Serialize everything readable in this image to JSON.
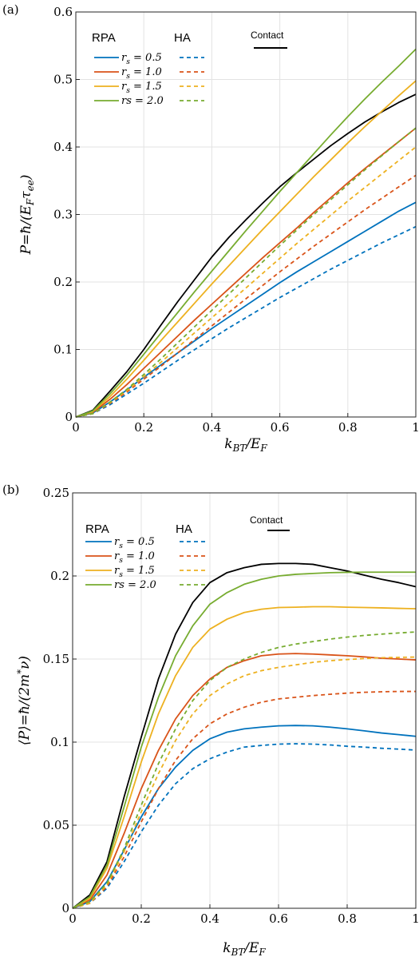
{
  "chart_data": [
    {
      "panel_label": "(a)",
      "type": "line",
      "xlabel": "k_B T / E_F",
      "ylabel": "P = ħ/(E_F τ_ee)",
      "xlim": [
        0,
        1
      ],
      "ylim": [
        0,
        0.6
      ],
      "xticks": [
        "0",
        "0.2",
        "0.4",
        "0.6",
        "0.8",
        "1"
      ],
      "yticks": [
        "0",
        "0.1",
        "0.2",
        "0.3",
        "0.4",
        "0.5",
        "0.6"
      ],
      "grid": true,
      "legend_headers": {
        "rpa": "RPA",
        "ha": "HA",
        "contact": "Contact"
      },
      "series": [
        {
          "name": "Contact",
          "method": "Contact",
          "color": "#000000",
          "style": "solid",
          "x": [
            0,
            0.05,
            0.1,
            0.15,
            0.2,
            0.25,
            0.3,
            0.35,
            0.4,
            0.45,
            0.5,
            0.55,
            0.6,
            0.65,
            0.7,
            0.75,
            0.8,
            0.85,
            0.9,
            0.95,
            1.0
          ],
          "y": [
            0,
            0.01,
            0.038,
            0.067,
            0.1,
            0.136,
            0.171,
            0.204,
            0.237,
            0.266,
            0.292,
            0.317,
            0.341,
            0.362,
            0.382,
            0.402,
            0.42,
            0.437,
            0.452,
            0.466,
            0.478
          ]
        },
        {
          "name": "r_s = 0.5",
          "method": "RPA",
          "color": "#0072BD",
          "style": "solid",
          "x": [
            0,
            0.05,
            0.1,
            0.15,
            0.2,
            0.25,
            0.3,
            0.35,
            0.4,
            0.45,
            0.5,
            0.55,
            0.6,
            0.65,
            0.7,
            0.75,
            0.8,
            0.85,
            0.9,
            0.95,
            1.0
          ],
          "y": [
            0,
            0.006,
            0.022,
            0.04,
            0.059,
            0.077,
            0.095,
            0.113,
            0.131,
            0.148,
            0.165,
            0.182,
            0.199,
            0.215,
            0.23,
            0.245,
            0.26,
            0.275,
            0.29,
            0.305,
            0.318
          ]
        },
        {
          "name": "r_s = 1.0",
          "method": "RPA",
          "color": "#D95319",
          "style": "solid",
          "x": [
            0,
            0.05,
            0.1,
            0.15,
            0.2,
            0.25,
            0.3,
            0.35,
            0.4,
            0.45,
            0.5,
            0.55,
            0.6,
            0.65,
            0.7,
            0.75,
            0.8,
            0.85,
            0.9,
            0.95,
            1.0
          ],
          "y": [
            0,
            0.007,
            0.026,
            0.048,
            0.072,
            0.096,
            0.12,
            0.144,
            0.167,
            0.19,
            0.213,
            0.236,
            0.258,
            0.28,
            0.303,
            0.325,
            0.347,
            0.368,
            0.388,
            0.408,
            0.428
          ]
        },
        {
          "name": "r_s = 1.5",
          "method": "RPA",
          "color": "#EDB120",
          "style": "solid",
          "x": [
            0,
            0.05,
            0.1,
            0.15,
            0.2,
            0.25,
            0.3,
            0.35,
            0.4,
            0.45,
            0.5,
            0.55,
            0.6,
            0.65,
            0.7,
            0.75,
            0.8,
            0.85,
            0.9,
            0.95,
            1.0
          ],
          "y": [
            0,
            0.008,
            0.03,
            0.056,
            0.084,
            0.113,
            0.141,
            0.169,
            0.197,
            0.224,
            0.251,
            0.278,
            0.304,
            0.33,
            0.356,
            0.381,
            0.406,
            0.43,
            0.453,
            0.476,
            0.498
          ]
        },
        {
          "name": "rs = 2.0",
          "method": "RPA",
          "color": "#77AC30",
          "style": "solid",
          "x": [
            0,
            0.05,
            0.1,
            0.15,
            0.2,
            0.25,
            0.3,
            0.35,
            0.4,
            0.45,
            0.5,
            0.55,
            0.6,
            0.65,
            0.7,
            0.75,
            0.8,
            0.85,
            0.9,
            0.95,
            1.0
          ],
          "y": [
            0,
            0.009,
            0.034,
            0.062,
            0.093,
            0.124,
            0.155,
            0.186,
            0.216,
            0.246,
            0.276,
            0.305,
            0.334,
            0.362,
            0.39,
            0.418,
            0.445,
            0.471,
            0.496,
            0.52,
            0.545
          ]
        },
        {
          "name": "r_s = 0.5",
          "method": "HA",
          "color": "#0072BD",
          "style": "dashed",
          "x": [
            0,
            0.05,
            0.1,
            0.15,
            0.2,
            0.25,
            0.3,
            0.35,
            0.4,
            0.45,
            0.5,
            0.55,
            0.6,
            0.65,
            0.7,
            0.75,
            0.8,
            0.85,
            0.9,
            0.95,
            1.0
          ],
          "y": [
            0,
            0.005,
            0.018,
            0.034,
            0.05,
            0.067,
            0.084,
            0.1,
            0.116,
            0.132,
            0.147,
            0.162,
            0.177,
            0.191,
            0.205,
            0.219,
            0.232,
            0.245,
            0.258,
            0.27,
            0.282
          ]
        },
        {
          "name": "r_s = 1.0",
          "method": "HA",
          "color": "#D95319",
          "style": "dashed",
          "x": [
            0,
            0.05,
            0.1,
            0.15,
            0.2,
            0.25,
            0.3,
            0.35,
            0.4,
            0.45,
            0.5,
            0.55,
            0.6,
            0.65,
            0.7,
            0.75,
            0.8,
            0.85,
            0.9,
            0.95,
            1.0
          ],
          "y": [
            0,
            0.005,
            0.02,
            0.037,
            0.056,
            0.075,
            0.095,
            0.115,
            0.135,
            0.155,
            0.175,
            0.195,
            0.215,
            0.234,
            0.253,
            0.271,
            0.289,
            0.307,
            0.324,
            0.341,
            0.358
          ]
        },
        {
          "name": "r_s = 1.5",
          "method": "HA",
          "color": "#EDB120",
          "style": "dashed",
          "x": [
            0,
            0.05,
            0.1,
            0.15,
            0.2,
            0.25,
            0.3,
            0.35,
            0.4,
            0.45,
            0.5,
            0.55,
            0.6,
            0.65,
            0.7,
            0.75,
            0.8,
            0.85,
            0.9,
            0.95,
            1.0
          ],
          "y": [
            0,
            0.005,
            0.021,
            0.039,
            0.06,
            0.081,
            0.103,
            0.125,
            0.147,
            0.169,
            0.191,
            0.213,
            0.235,
            0.257,
            0.278,
            0.299,
            0.32,
            0.34,
            0.36,
            0.38,
            0.4
          ]
        },
        {
          "name": "rs = 2.0",
          "method": "HA",
          "color": "#77AC30",
          "style": "dashed",
          "x": [
            0,
            0.05,
            0.1,
            0.15,
            0.2,
            0.25,
            0.3,
            0.35,
            0.4,
            0.45,
            0.5,
            0.55,
            0.6,
            0.65,
            0.7,
            0.75,
            0.8,
            0.85,
            0.9,
            0.95,
            1.0
          ],
          "y": [
            0,
            0.005,
            0.022,
            0.041,
            0.063,
            0.086,
            0.11,
            0.134,
            0.158,
            0.182,
            0.206,
            0.23,
            0.254,
            0.277,
            0.3,
            0.322,
            0.344,
            0.366,
            0.387,
            0.408,
            0.428
          ]
        }
      ]
    },
    {
      "panel_label": "(b)",
      "type": "line",
      "xlabel": "k_B T / E_F",
      "ylabel": "⟨P⟩ = ħ/(2m* ν)",
      "xlim": [
        0,
        1
      ],
      "ylim": [
        0,
        0.25
      ],
      "xticks": [
        "0",
        "0.2",
        "0.4",
        "0.6",
        "0.8",
        "1"
      ],
      "yticks": [
        "0",
        "0.05",
        "0.1",
        "0.15",
        "0.2",
        "0.25"
      ],
      "grid": true,
      "legend_headers": {
        "rpa": "RPA",
        "ha": "HA",
        "contact": "Contact"
      },
      "series": [
        {
          "name": "Contact",
          "method": "Contact",
          "color": "#000000",
          "style": "solid",
          "x": [
            0,
            0.05,
            0.1,
            0.15,
            0.2,
            0.25,
            0.3,
            0.35,
            0.4,
            0.45,
            0.5,
            0.55,
            0.6,
            0.65,
            0.7,
            0.75,
            0.8,
            0.85,
            0.9,
            0.95,
            1.0
          ],
          "y": [
            0,
            0.008,
            0.028,
            0.067,
            0.103,
            0.138,
            0.165,
            0.184,
            0.196,
            0.202,
            0.205,
            0.207,
            0.2075,
            0.2075,
            0.207,
            0.205,
            0.203,
            0.2005,
            0.198,
            0.196,
            0.1935
          ]
        },
        {
          "name": "r_s = 0.5",
          "method": "RPA",
          "color": "#0072BD",
          "style": "solid",
          "x": [
            0,
            0.05,
            0.1,
            0.15,
            0.2,
            0.25,
            0.3,
            0.35,
            0.4,
            0.45,
            0.5,
            0.55,
            0.6,
            0.65,
            0.7,
            0.75,
            0.8,
            0.85,
            0.9,
            0.95,
            1.0
          ],
          "y": [
            0,
            0.004,
            0.016,
            0.035,
            0.055,
            0.072,
            0.085,
            0.095,
            0.102,
            0.106,
            0.108,
            0.109,
            0.1098,
            0.11,
            0.1098,
            0.109,
            0.108,
            0.1068,
            0.1055,
            0.1045,
            0.1035
          ]
        },
        {
          "name": "r_s = 1.0",
          "method": "RPA",
          "color": "#D95319",
          "style": "solid",
          "x": [
            0,
            0.05,
            0.1,
            0.15,
            0.2,
            0.25,
            0.3,
            0.35,
            0.4,
            0.45,
            0.5,
            0.55,
            0.6,
            0.65,
            0.7,
            0.75,
            0.8,
            0.85,
            0.9,
            0.95,
            1.0
          ],
          "y": [
            0,
            0.005,
            0.02,
            0.045,
            0.072,
            0.095,
            0.114,
            0.128,
            0.138,
            0.145,
            0.149,
            0.152,
            0.153,
            0.1533,
            0.153,
            0.1525,
            0.152,
            0.1513,
            0.1505,
            0.15,
            0.1495
          ]
        },
        {
          "name": "r_s = 1.5",
          "method": "RPA",
          "color": "#EDB120",
          "style": "solid",
          "x": [
            0,
            0.05,
            0.1,
            0.15,
            0.2,
            0.25,
            0.3,
            0.35,
            0.4,
            0.45,
            0.5,
            0.55,
            0.6,
            0.65,
            0.7,
            0.75,
            0.8,
            0.85,
            0.9,
            0.95,
            1.0
          ],
          "y": [
            0,
            0.006,
            0.024,
            0.055,
            0.088,
            0.117,
            0.14,
            0.157,
            0.168,
            0.174,
            0.178,
            0.18,
            0.181,
            0.1812,
            0.1815,
            0.1815,
            0.1812,
            0.181,
            0.1808,
            0.1805,
            0.1803
          ]
        },
        {
          "name": "rs = 2.0",
          "method": "RPA",
          "color": "#77AC30",
          "style": "solid",
          "x": [
            0,
            0.05,
            0.1,
            0.15,
            0.2,
            0.25,
            0.3,
            0.35,
            0.4,
            0.45,
            0.5,
            0.55,
            0.6,
            0.65,
            0.7,
            0.75,
            0.8,
            0.85,
            0.9,
            0.95,
            1.0
          ],
          "y": [
            0,
            0.007,
            0.026,
            0.061,
            0.097,
            0.127,
            0.152,
            0.17,
            0.183,
            0.19,
            0.195,
            0.198,
            0.2,
            0.201,
            0.2015,
            0.202,
            0.2022,
            0.2023,
            0.2023,
            0.2023,
            0.2023
          ]
        },
        {
          "name": "r_s = 0.5",
          "method": "HA",
          "color": "#0072BD",
          "style": "dashed",
          "x": [
            0,
            0.05,
            0.1,
            0.15,
            0.2,
            0.25,
            0.3,
            0.35,
            0.4,
            0.45,
            0.5,
            0.55,
            0.6,
            0.65,
            0.7,
            0.75,
            0.8,
            0.85,
            0.9,
            0.95,
            1.0
          ],
          "y": [
            0,
            0.003,
            0.012,
            0.028,
            0.046,
            0.062,
            0.075,
            0.084,
            0.09,
            0.094,
            0.097,
            0.098,
            0.0988,
            0.099,
            0.0988,
            0.0983,
            0.0975,
            0.097,
            0.0963,
            0.0958,
            0.0952
          ]
        },
        {
          "name": "r_s = 1.0",
          "method": "HA",
          "color": "#D95319",
          "style": "dashed",
          "x": [
            0,
            0.05,
            0.1,
            0.15,
            0.2,
            0.25,
            0.3,
            0.35,
            0.4,
            0.45,
            0.5,
            0.55,
            0.6,
            0.65,
            0.7,
            0.75,
            0.8,
            0.85,
            0.9,
            0.95,
            1.0
          ],
          "y": [
            0,
            0.003,
            0.013,
            0.031,
            0.052,
            0.072,
            0.089,
            0.102,
            0.111,
            0.117,
            0.121,
            0.124,
            0.126,
            0.127,
            0.128,
            0.1288,
            0.1295,
            0.13,
            0.1303,
            0.1305,
            0.1305
          ]
        },
        {
          "name": "r_s = 1.5",
          "method": "HA",
          "color": "#EDB120",
          "style": "dashed",
          "x": [
            0,
            0.05,
            0.1,
            0.15,
            0.2,
            0.25,
            0.3,
            0.35,
            0.4,
            0.45,
            0.5,
            0.55,
            0.6,
            0.65,
            0.7,
            0.75,
            0.8,
            0.85,
            0.9,
            0.95,
            1.0
          ],
          "y": [
            0,
            0.003,
            0.014,
            0.034,
            0.058,
            0.081,
            0.101,
            0.117,
            0.128,
            0.135,
            0.14,
            0.143,
            0.145,
            0.1465,
            0.148,
            0.149,
            0.1497,
            0.1503,
            0.1508,
            0.151,
            0.1512
          ]
        },
        {
          "name": "rs = 2.0",
          "method": "HA",
          "color": "#77AC30",
          "style": "dashed",
          "x": [
            0,
            0.05,
            0.1,
            0.15,
            0.2,
            0.25,
            0.3,
            0.35,
            0.4,
            0.45,
            0.5,
            0.55,
            0.6,
            0.65,
            0.7,
            0.75,
            0.8,
            0.85,
            0.9,
            0.95,
            1.0
          ],
          "y": [
            0,
            0.004,
            0.015,
            0.036,
            0.062,
            0.087,
            0.108,
            0.125,
            0.137,
            0.145,
            0.15,
            0.154,
            0.157,
            0.159,
            0.1605,
            0.162,
            0.1632,
            0.1642,
            0.165,
            0.1657,
            0.1663
          ]
        }
      ]
    }
  ]
}
